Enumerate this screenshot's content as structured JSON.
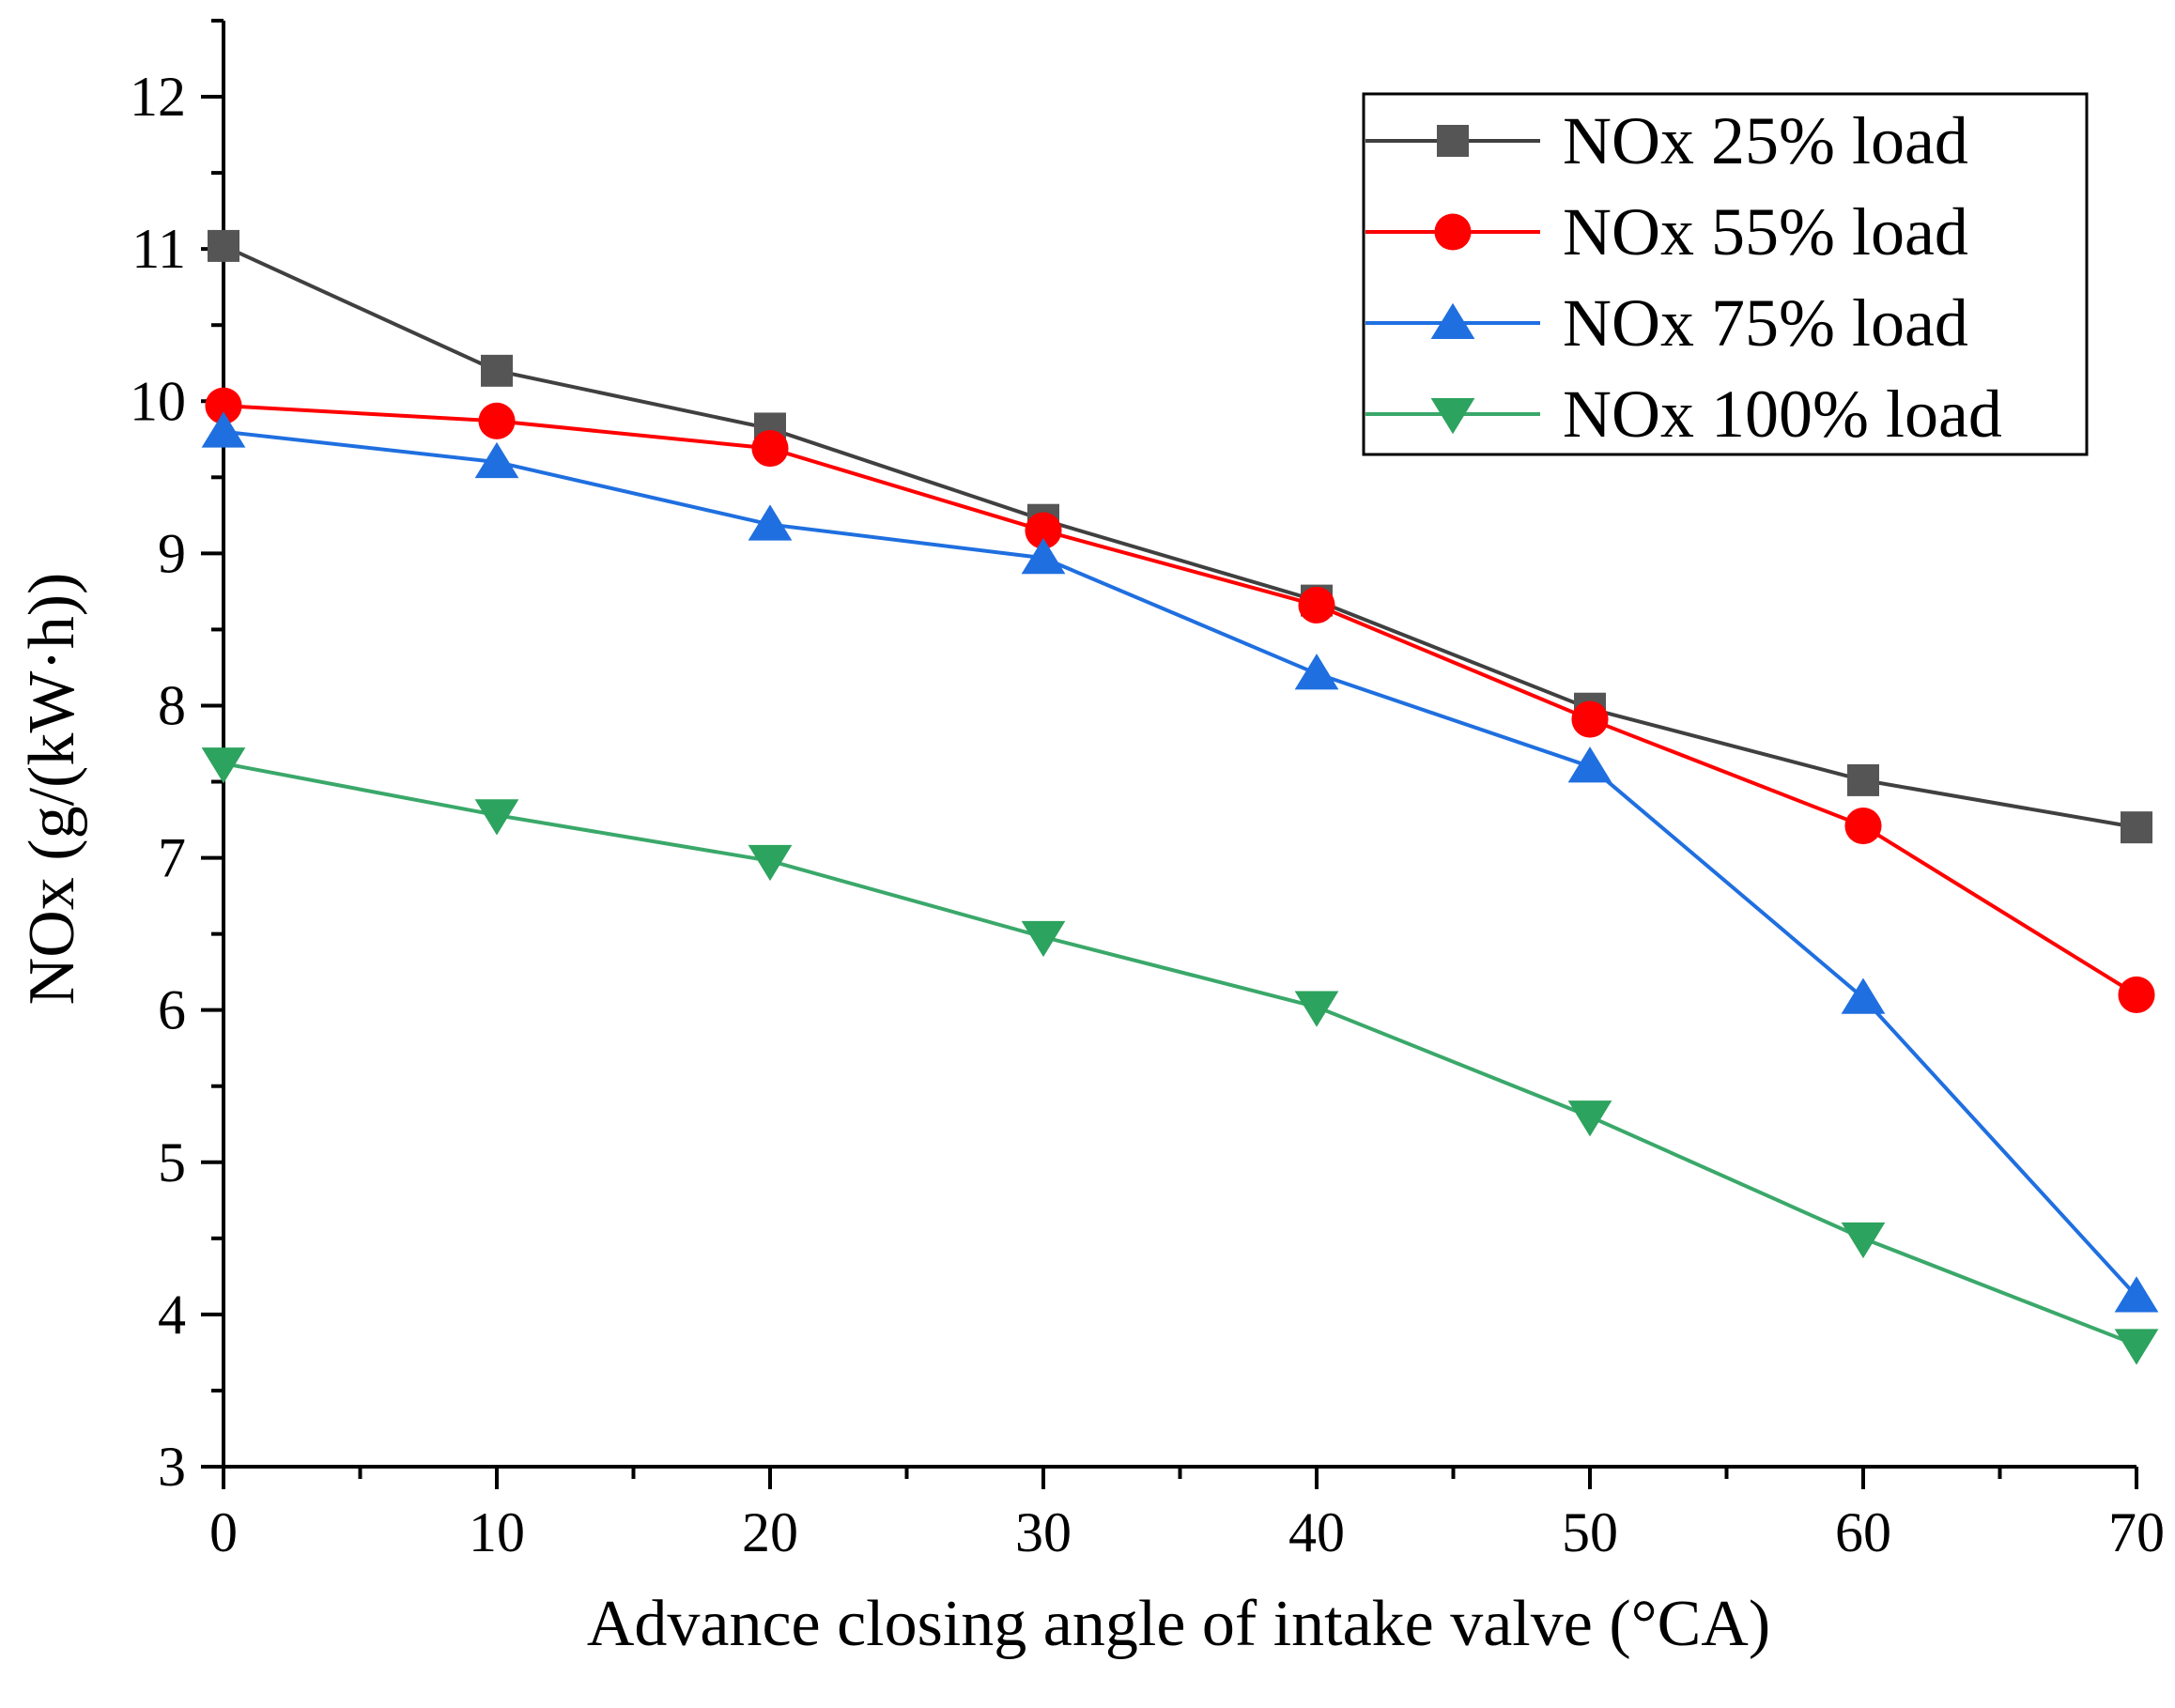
{
  "chart_data": {
    "type": "line",
    "title": "",
    "xlabel": "Advance closing angle of intake valve (°CA)",
    "ylabel": "NOx (g/(kW·h))",
    "xlim": [
      0,
      70
    ],
    "ylim": [
      3,
      12.5
    ],
    "x_ticks": [
      0,
      10,
      20,
      30,
      40,
      50,
      60,
      70
    ],
    "y_ticks": [
      3,
      4,
      5,
      6,
      7,
      8,
      9,
      10,
      11,
      12
    ],
    "x_minor_step": 5,
    "y_minor_step": 0.5,
    "grid": false,
    "legend_position": "top-right",
    "x": [
      0,
      10,
      20,
      30,
      40,
      50,
      60,
      70
    ],
    "series": [
      {
        "name": "NOx 25% load",
        "marker": "square",
        "color": "#555555",
        "line_color": "#404040",
        "values": [
          11.02,
          10.2,
          9.82,
          9.22,
          8.69,
          7.98,
          7.51,
          7.2
        ]
      },
      {
        "name": "NOx 55% load",
        "marker": "circle",
        "color": "#ff0000",
        "line_color": "#ff0000",
        "values": [
          9.97,
          9.87,
          9.69,
          9.15,
          8.66,
          7.91,
          7.21,
          6.1
        ]
      },
      {
        "name": "NOx 75% load",
        "marker": "triangle-up",
        "color": "#1f6fe0",
        "line_color": "#1f6fe0",
        "values": [
          9.8,
          9.6,
          9.19,
          8.97,
          8.21,
          7.6,
          6.08,
          4.12
        ]
      },
      {
        "name": "NOx 100% load",
        "marker": "triangle-down",
        "color": "#2ca35e",
        "line_color": "#3aa86a",
        "values": [
          7.62,
          7.28,
          6.98,
          6.48,
          6.02,
          5.3,
          4.5,
          3.8
        ]
      }
    ]
  }
}
